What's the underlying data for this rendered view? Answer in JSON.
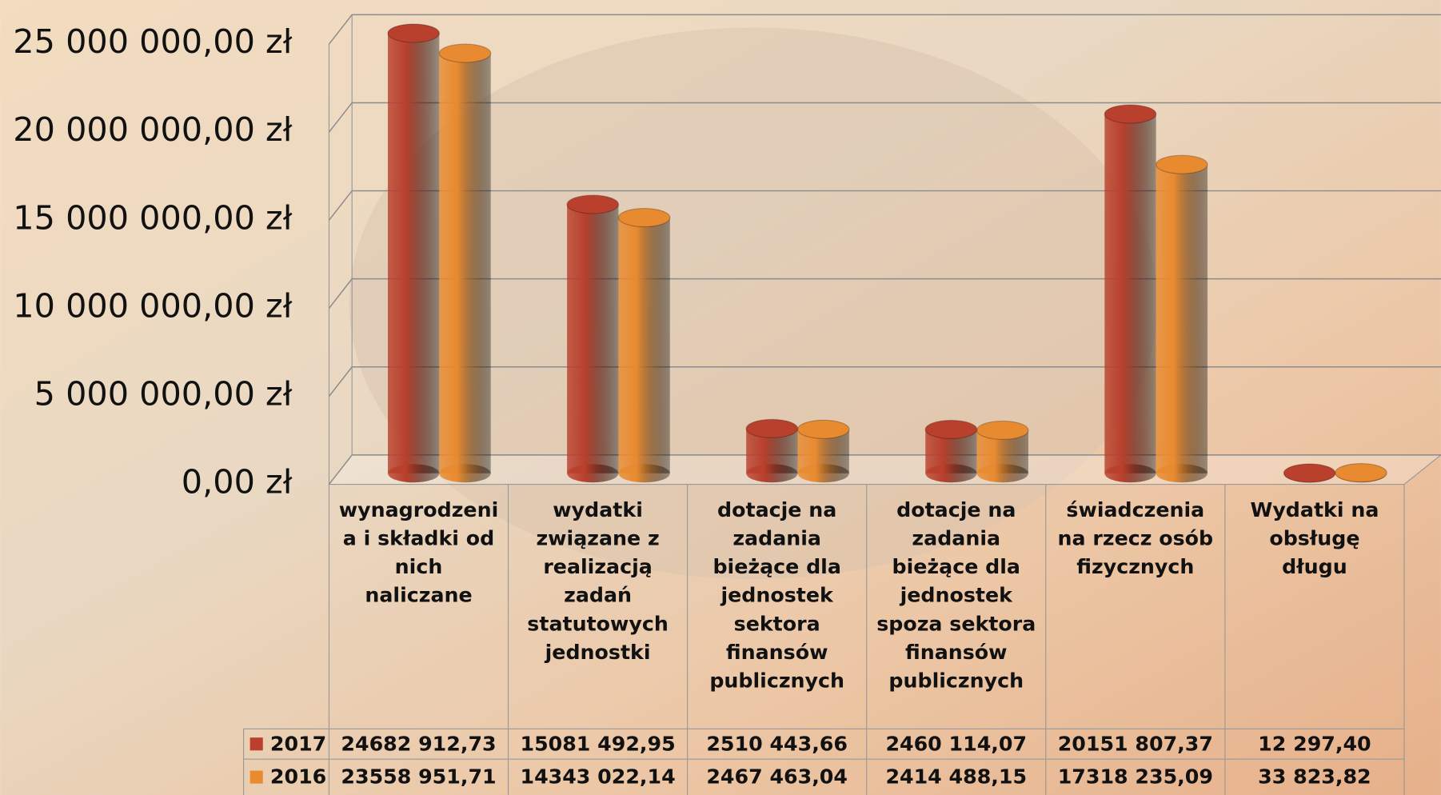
{
  "chart_data": {
    "type": "bar",
    "categories": [
      "wynagrodzenia i składki od nich naliczane",
      "wydatki związane z realizacją zadań statutowych jednostki",
      "dotacje na zadania bieżące dla jednostek sektora finansów publicznych",
      "dotacje na zadania bieżące dla jednostek spoza sektora finansów publicznych",
      "świadczenia na rzecz osób fizycznych",
      "Wydatki na obsługę długu"
    ],
    "series": [
      {
        "name": "2017",
        "color": "#b8402c",
        "values": [
          24682912.73,
          15081492.95,
          2510443.66,
          2460114.07,
          20151807.37,
          12297.4
        ],
        "value_labels": [
          "24682 912,73",
          "15081 492,95",
          "2510 443,66",
          "2460 114,07",
          "20151 807,37",
          "12 297,40"
        ]
      },
      {
        "name": "2016",
        "color": "#e88a30",
        "values": [
          23558951.71,
          14343022.14,
          2467463.04,
          2414488.15,
          17318235.09,
          33823.82
        ],
        "value_labels": [
          "23558 951,71",
          "14343 022,14",
          "2467 463,04",
          "2414 488,15",
          "17318 235,09",
          "33 823,82"
        ]
      }
    ],
    "ylim": [
      0,
      25000000
    ],
    "yticks": [
      {
        "value": 0,
        "label": "0,00 zł"
      },
      {
        "value": 5000000,
        "label": "5 000 000,00 zł"
      },
      {
        "value": 10000000,
        "label": "10 000 000,00 zł"
      },
      {
        "value": 15000000,
        "label": "15 000 000,00 zł"
      },
      {
        "value": 20000000,
        "label": "20 000 000,00 zł"
      },
      {
        "value": 25000000,
        "label": "25 000 000,00 zł"
      }
    ],
    "grid": true
  }
}
